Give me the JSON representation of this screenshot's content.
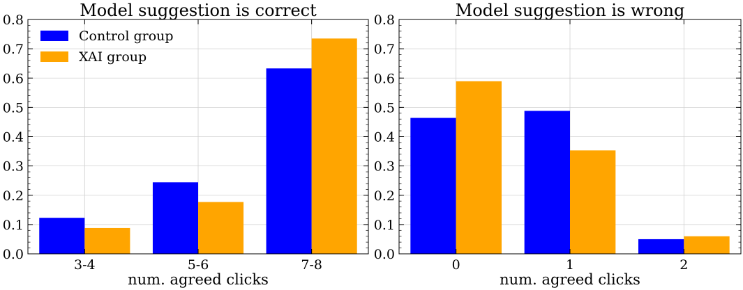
{
  "chart_data": [
    {
      "type": "bar",
      "title": "Model suggestion is correct",
      "xlabel": "num. agreed clicks",
      "ylabel": "",
      "categories": [
        "3-4",
        "5-6",
        "7-8"
      ],
      "ylim": [
        0,
        0.8
      ],
      "yticks": [
        "0.0",
        "0.1",
        "0.2",
        "0.3",
        "0.4",
        "0.5",
        "0.6",
        "0.7",
        "0.8"
      ],
      "grid": true,
      "legend": "top-left",
      "series": [
        {
          "name": "Control group",
          "color": "#0000ff",
          "values": [
            0.123,
            0.244,
            0.633
          ]
        },
        {
          "name": "XAI group",
          "color": "#ffa500",
          "values": [
            0.088,
            0.177,
            0.735
          ]
        }
      ]
    },
    {
      "type": "bar",
      "title": "Model suggestion is wrong",
      "xlabel": "num. agreed clicks",
      "ylabel": "",
      "categories": [
        "0",
        "1",
        "2"
      ],
      "ylim": [
        0,
        0.8
      ],
      "yticks": [
        "0.0",
        "0.1",
        "0.2",
        "0.3",
        "0.4",
        "0.5",
        "0.6",
        "0.7",
        "0.8"
      ],
      "grid": true,
      "series": [
        {
          "color": "#0000ff",
          "values": [
            0.464,
            0.488,
            0.05
          ]
        },
        {
          "color": "#ffa500",
          "values": [
            0.589,
            0.353,
            0.06
          ]
        }
      ]
    }
  ]
}
